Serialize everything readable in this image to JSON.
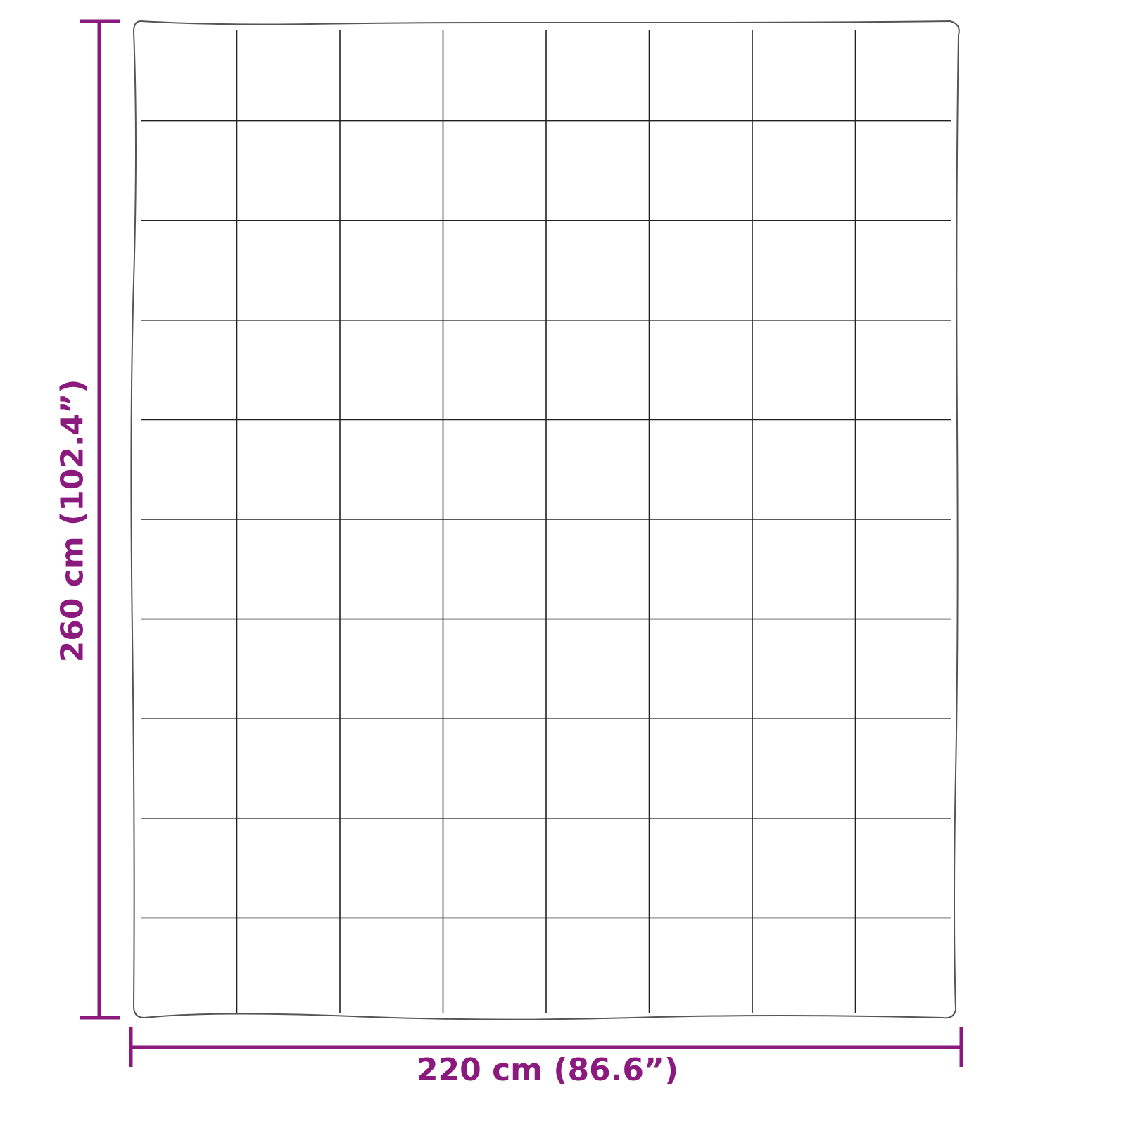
{
  "colors": {
    "dimension": "#8B1A7E",
    "outline": "#555555",
    "stitch": "#222222"
  },
  "dimensions": {
    "width_label": "220 cm (86.6”)",
    "height_label": "260 cm (102.4”)"
  },
  "grid": {
    "columns": 8,
    "rows": 10
  }
}
